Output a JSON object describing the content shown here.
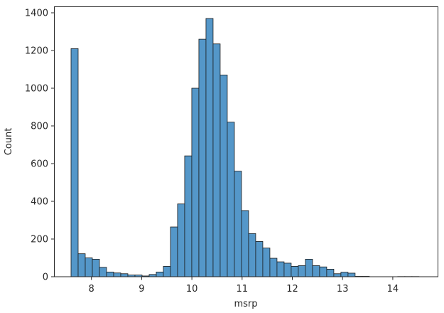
{
  "chart_data": {
    "type": "bar",
    "subtype": "histogram",
    "title": "",
    "xlabel": "msrp",
    "ylabel": "Count",
    "xlim": [
      7.25,
      14.88
    ],
    "ylim": [
      0,
      1450
    ],
    "xticks": [
      8,
      9,
      10,
      11,
      12,
      13,
      14
    ],
    "yticks": [
      0,
      200,
      400,
      600,
      800,
      1000,
      1200,
      1400
    ],
    "grid": false,
    "legend": null,
    "bin_start": 7.594,
    "bin_width": 0.1414,
    "bar_color": "#5497c9",
    "edge_color": "#1a1a1a",
    "values": [
      1210,
      122,
      100,
      93,
      50,
      25,
      20,
      16,
      9,
      9,
      4,
      12,
      25,
      55,
      264,
      386,
      641,
      1000,
      1260,
      1370,
      1235,
      1070,
      820,
      560,
      351,
      229,
      187,
      152,
      98,
      79,
      72,
      55,
      59,
      93,
      59,
      52,
      40,
      16,
      24,
      19,
      2,
      2,
      0,
      0,
      0,
      0,
      1,
      1,
      1
    ]
  }
}
